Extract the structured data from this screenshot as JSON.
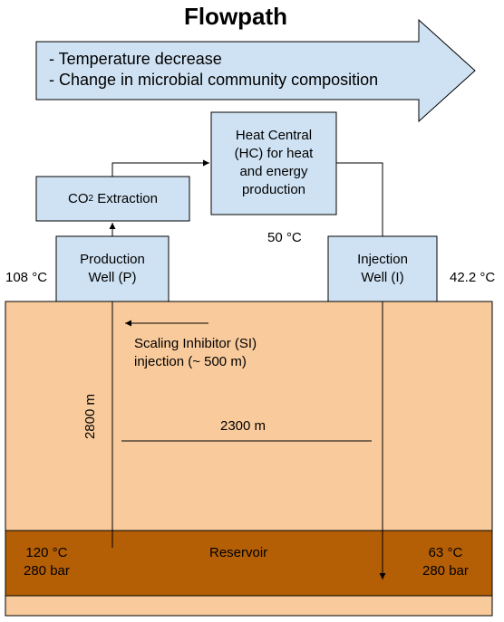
{
  "title": "Flowpath",
  "flow_arrow": {
    "lines": [
      "- Temperature decrease",
      "- Change in microbial community composition"
    ]
  },
  "boxes": {
    "heat_central": {
      "lines": [
        "Heat Central",
        "(HC) for heat",
        "and energy",
        "production"
      ]
    },
    "co2_extraction": {
      "prefix": "CO",
      "subscript": "2",
      "suffix": " Extraction"
    },
    "production_well": {
      "lines": [
        "Production",
        "Well (P)"
      ]
    },
    "injection_well": {
      "lines": [
        "Injection",
        "Well (I)"
      ]
    }
  },
  "labels": {
    "temp_production": "108 °C",
    "temp_hc": "50 °C",
    "temp_injection": "42.2 °C",
    "scaling_inhibitor": [
      "Scaling Inhibitor (SI)",
      "injection (~ 500 m)"
    ],
    "depth": "2800 m",
    "distance": "2300 m",
    "reservoir": "Reservoir",
    "reservoir_left_temp": "120 °C",
    "reservoir_left_pressure": "280 bar",
    "reservoir_right_temp": "63 °C",
    "reservoir_right_pressure": "280 bar"
  },
  "colors": {
    "box_fill": "#cfe2f3",
    "ground": "#f9cb9c",
    "reservoir": "#b45f06",
    "stroke": "#000000"
  }
}
